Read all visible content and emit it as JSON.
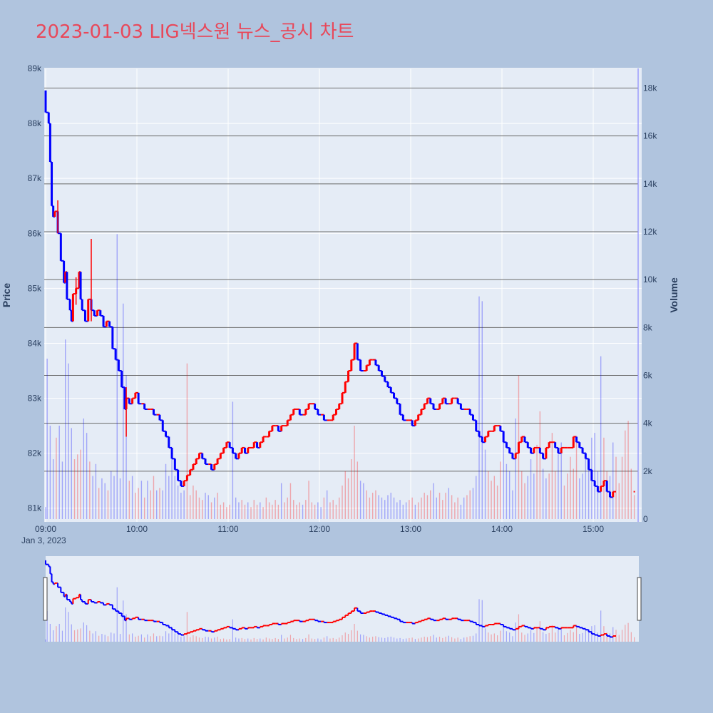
{
  "title": "2023-01-03 LIG넥스원 뉴스_공시 차트",
  "colors": {
    "up": "#ff0000",
    "down": "#0000ff",
    "background": "#b0c4de",
    "plot_bg": "#e5ecf6",
    "title": "#e8485a"
  },
  "chart_data": {
    "type": "candlestick",
    "title": "2023-01-03 LIG넥스원 뉴스_공시 차트",
    "ylabel": "Price",
    "y2label": "Volume",
    "xlabel": "",
    "date_label": "Jan 3, 2023",
    "x_ticks": [
      "09:00",
      "10:00",
      "11:00",
      "12:00",
      "13:00",
      "14:00",
      "15:00"
    ],
    "y_ticks": [
      "81k",
      "82k",
      "83k",
      "84k",
      "85k",
      "86k",
      "87k",
      "88k",
      "89k"
    ],
    "y2_ticks": [
      "0",
      "2k",
      "4k",
      "6k",
      "8k",
      "10k",
      "12k",
      "14k",
      "16k",
      "18k"
    ],
    "ylim": [
      80750,
      89000
    ],
    "y2lim": [
      0,
      18700
    ],
    "x_range_minutes": [
      0,
      390
    ],
    "price_path": [
      [
        0,
        88600
      ],
      [
        2,
        88200
      ],
      [
        3,
        88000
      ],
      [
        4,
        87300
      ],
      [
        5,
        86500
      ],
      [
        6,
        86300
      ],
      [
        8,
        86400
      ],
      [
        10,
        86000
      ],
      [
        12,
        85500
      ],
      [
        13,
        85100
      ],
      [
        14,
        85300
      ],
      [
        16,
        84800
      ],
      [
        17,
        84600
      ],
      [
        18,
        84400
      ],
      [
        20,
        84900
      ],
      [
        22,
        85000
      ],
      [
        23,
        85300
      ],
      [
        24,
        84800
      ],
      [
        26,
        84600
      ],
      [
        28,
        84400
      ],
      [
        30,
        84800
      ],
      [
        32,
        84600
      ],
      [
        34,
        84500
      ],
      [
        36,
        84600
      ],
      [
        38,
        84500
      ],
      [
        40,
        84300
      ],
      [
        42,
        84400
      ],
      [
        44,
        84300
      ],
      [
        46,
        83900
      ],
      [
        48,
        83700
      ],
      [
        50,
        83500
      ],
      [
        52,
        83200
      ],
      [
        53,
        82800
      ],
      [
        55,
        83000
      ],
      [
        57,
        82900
      ],
      [
        59,
        83000
      ],
      [
        61,
        83100
      ],
      [
        63,
        82900
      ],
      [
        65,
        82900
      ],
      [
        67,
        82800
      ],
      [
        69,
        82800
      ],
      [
        71,
        82800
      ],
      [
        73,
        82700
      ],
      [
        75,
        82700
      ],
      [
        77,
        82600
      ],
      [
        79,
        82400
      ],
      [
        81,
        82300
      ],
      [
        83,
        82100
      ],
      [
        85,
        81900
      ],
      [
        87,
        81700
      ],
      [
        89,
        81500
      ],
      [
        91,
        81400
      ],
      [
        93,
        81500
      ],
      [
        95,
        81600
      ],
      [
        97,
        81700
      ],
      [
        99,
        81800
      ],
      [
        101,
        81900
      ],
      [
        103,
        82000
      ],
      [
        105,
        81900
      ],
      [
        107,
        81800
      ],
      [
        109,
        81800
      ],
      [
        111,
        81700
      ],
      [
        113,
        81800
      ],
      [
        115,
        81900
      ],
      [
        117,
        82000
      ],
      [
        119,
        82100
      ],
      [
        121,
        82200
      ],
      [
        123,
        82100
      ],
      [
        125,
        82000
      ],
      [
        127,
        81900
      ],
      [
        129,
        82000
      ],
      [
        131,
        82100
      ],
      [
        133,
        82000
      ],
      [
        135,
        82100
      ],
      [
        137,
        82100
      ],
      [
        139,
        82200
      ],
      [
        141,
        82100
      ],
      [
        143,
        82200
      ],
      [
        145,
        82300
      ],
      [
        147,
        82300
      ],
      [
        149,
        82400
      ],
      [
        151,
        82500
      ],
      [
        153,
        82500
      ],
      [
        155,
        82400
      ],
      [
        157,
        82500
      ],
      [
        159,
        82500
      ],
      [
        161,
        82600
      ],
      [
        163,
        82700
      ],
      [
        165,
        82800
      ],
      [
        167,
        82800
      ],
      [
        169,
        82700
      ],
      [
        171,
        82700
      ],
      [
        173,
        82800
      ],
      [
        175,
        82900
      ],
      [
        177,
        82900
      ],
      [
        179,
        82800
      ],
      [
        181,
        82700
      ],
      [
        183,
        82700
      ],
      [
        185,
        82600
      ],
      [
        187,
        82600
      ],
      [
        189,
        82600
      ],
      [
        191,
        82700
      ],
      [
        193,
        82800
      ],
      [
        195,
        82900
      ],
      [
        197,
        83100
      ],
      [
        199,
        83300
      ],
      [
        201,
        83500
      ],
      [
        203,
        83700
      ],
      [
        205,
        84000
      ],
      [
        207,
        83700
      ],
      [
        209,
        83500
      ],
      [
        211,
        83500
      ],
      [
        213,
        83600
      ],
      [
        215,
        83700
      ],
      [
        217,
        83700
      ],
      [
        219,
        83600
      ],
      [
        221,
        83500
      ],
      [
        223,
        83400
      ],
      [
        225,
        83300
      ],
      [
        227,
        83200
      ],
      [
        229,
        83100
      ],
      [
        231,
        83000
      ],
      [
        233,
        82900
      ],
      [
        235,
        82700
      ],
      [
        237,
        82600
      ],
      [
        239,
        82600
      ],
      [
        241,
        82600
      ],
      [
        243,
        82500
      ],
      [
        245,
        82600
      ],
      [
        247,
        82700
      ],
      [
        249,
        82800
      ],
      [
        251,
        82900
      ],
      [
        253,
        83000
      ],
      [
        255,
        82900
      ],
      [
        257,
        82800
      ],
      [
        259,
        82800
      ],
      [
        261,
        82900
      ],
      [
        263,
        83000
      ],
      [
        265,
        82900
      ],
      [
        267,
        82900
      ],
      [
        269,
        83000
      ],
      [
        271,
        83000
      ],
      [
        273,
        82900
      ],
      [
        275,
        82800
      ],
      [
        277,
        82800
      ],
      [
        279,
        82800
      ],
      [
        281,
        82700
      ],
      [
        283,
        82600
      ],
      [
        285,
        82400
      ],
      [
        287,
        82300
      ],
      [
        289,
        82200
      ],
      [
        291,
        82300
      ],
      [
        293,
        82400
      ],
      [
        295,
        82400
      ],
      [
        297,
        82500
      ],
      [
        299,
        82500
      ],
      [
        301,
        82400
      ],
      [
        303,
        82200
      ],
      [
        305,
        82100
      ],
      [
        307,
        82000
      ],
      [
        309,
        81900
      ],
      [
        311,
        82000
      ],
      [
        313,
        82200
      ],
      [
        315,
        82300
      ],
      [
        317,
        82200
      ],
      [
        319,
        82100
      ],
      [
        321,
        82000
      ],
      [
        323,
        82100
      ],
      [
        325,
        82100
      ],
      [
        327,
        82000
      ],
      [
        329,
        81900
      ],
      [
        331,
        82100
      ],
      [
        333,
        82200
      ],
      [
        335,
        82200
      ],
      [
        337,
        82100
      ],
      [
        339,
        82000
      ],
      [
        341,
        82100
      ],
      [
        343,
        82100
      ],
      [
        345,
        82100
      ],
      [
        347,
        82100
      ],
      [
        349,
        82300
      ],
      [
        351,
        82200
      ],
      [
        353,
        82100
      ],
      [
        355,
        82000
      ],
      [
        357,
        81900
      ],
      [
        359,
        81700
      ],
      [
        361,
        81500
      ],
      [
        363,
        81400
      ],
      [
        365,
        81300
      ],
      [
        367,
        81400
      ],
      [
        369,
        81500
      ],
      [
        371,
        81300
      ],
      [
        373,
        81200
      ],
      [
        375,
        81300
      ]
    ],
    "price_marker": [
      387,
      81300
    ],
    "volume_bars_sampled": [
      [
        0,
        500
      ],
      [
        1,
        6700
      ],
      [
        3,
        3900
      ],
      [
        5,
        2500
      ],
      [
        7,
        3400
      ],
      [
        9,
        3900
      ],
      [
        11,
        2400
      ],
      [
        13,
        7500
      ],
      [
        15,
        6500
      ],
      [
        17,
        3800
      ],
      [
        19,
        2500
      ],
      [
        21,
        2700
      ],
      [
        23,
        2900
      ],
      [
        25,
        4200
      ],
      [
        27,
        3600
      ],
      [
        29,
        2400
      ],
      [
        31,
        1800
      ],
      [
        33,
        2300
      ],
      [
        35,
        1300
      ],
      [
        37,
        1700
      ],
      [
        39,
        1500
      ],
      [
        41,
        1200
      ],
      [
        43,
        2000
      ],
      [
        45,
        1800
      ],
      [
        47,
        11900
      ],
      [
        49,
        1700
      ],
      [
        51,
        9000
      ],
      [
        53,
        6000
      ],
      [
        55,
        1600
      ],
      [
        57,
        1800
      ],
      [
        59,
        1100
      ],
      [
        61,
        1300
      ],
      [
        63,
        1600
      ],
      [
        65,
        900
      ],
      [
        67,
        1600
      ],
      [
        69,
        1200
      ],
      [
        71,
        1800
      ],
      [
        73,
        1200
      ],
      [
        75,
        1300
      ],
      [
        77,
        1200
      ],
      [
        79,
        2300
      ],
      [
        81,
        1800
      ],
      [
        83,
        2600
      ],
      [
        85,
        1800
      ],
      [
        87,
        1400
      ],
      [
        89,
        1100
      ],
      [
        91,
        1200
      ],
      [
        93,
        6500
      ],
      [
        95,
        1000
      ],
      [
        97,
        1400
      ],
      [
        99,
        1200
      ],
      [
        101,
        900
      ],
      [
        103,
        800
      ],
      [
        105,
        1100
      ],
      [
        107,
        1000
      ],
      [
        109,
        700
      ],
      [
        111,
        900
      ],
      [
        113,
        1100
      ],
      [
        115,
        600
      ],
      [
        117,
        700
      ],
      [
        119,
        500
      ],
      [
        121,
        600
      ],
      [
        123,
        4900
      ],
      [
        125,
        900
      ],
      [
        127,
        700
      ],
      [
        129,
        800
      ],
      [
        131,
        600
      ],
      [
        133,
        700
      ],
      [
        135,
        500
      ],
      [
        137,
        800
      ],
      [
        139,
        600
      ],
      [
        141,
        700
      ],
      [
        143,
        500
      ],
      [
        145,
        900
      ],
      [
        147,
        700
      ],
      [
        149,
        600
      ],
      [
        151,
        800
      ],
      [
        153,
        600
      ],
      [
        155,
        1500
      ],
      [
        157,
        700
      ],
      [
        159,
        900
      ],
      [
        161,
        1500
      ],
      [
        163,
        800
      ],
      [
        165,
        600
      ],
      [
        167,
        700
      ],
      [
        169,
        600
      ],
      [
        171,
        800
      ],
      [
        173,
        1600
      ],
      [
        175,
        700
      ],
      [
        177,
        600
      ],
      [
        179,
        700
      ],
      [
        181,
        500
      ],
      [
        183,
        900
      ],
      [
        185,
        1200
      ],
      [
        187,
        700
      ],
      [
        189,
        800
      ],
      [
        191,
        600
      ],
      [
        193,
        900
      ],
      [
        195,
        1400
      ],
      [
        197,
        2000
      ],
      [
        199,
        1700
      ],
      [
        201,
        2500
      ],
      [
        203,
        3900
      ],
      [
        205,
        2400
      ],
      [
        207,
        1600
      ],
      [
        209,
        1500
      ],
      [
        211,
        1200
      ],
      [
        213,
        900
      ],
      [
        215,
        1100
      ],
      [
        217,
        1200
      ],
      [
        219,
        1000
      ],
      [
        221,
        900
      ],
      [
        223,
        800
      ],
      [
        225,
        1000
      ],
      [
        227,
        1100
      ],
      [
        229,
        900
      ],
      [
        231,
        700
      ],
      [
        233,
        800
      ],
      [
        235,
        600
      ],
      [
        237,
        700
      ],
      [
        239,
        800
      ],
      [
        241,
        900
      ],
      [
        243,
        600
      ],
      [
        245,
        700
      ],
      [
        247,
        900
      ],
      [
        249,
        1100
      ],
      [
        251,
        1000
      ],
      [
        253,
        1200
      ],
      [
        255,
        1500
      ],
      [
        257,
        900
      ],
      [
        259,
        1100
      ],
      [
        261,
        800
      ],
      [
        263,
        1100
      ],
      [
        265,
        1300
      ],
      [
        267,
        1000
      ],
      [
        269,
        700
      ],
      [
        271,
        900
      ],
      [
        273,
        600
      ],
      [
        275,
        900
      ],
      [
        277,
        1000
      ],
      [
        279,
        1200
      ],
      [
        281,
        1300
      ],
      [
        283,
        1800
      ],
      [
        285,
        9300
      ],
      [
        287,
        9100
      ],
      [
        289,
        2900
      ],
      [
        291,
        2000
      ],
      [
        293,
        1600
      ],
      [
        295,
        1800
      ],
      [
        297,
        1400
      ],
      [
        299,
        2400
      ],
      [
        301,
        3500
      ],
      [
        303,
        2300
      ],
      [
        305,
        2000
      ],
      [
        307,
        1200
      ],
      [
        309,
        4200
      ],
      [
        311,
        6000
      ],
      [
        313,
        2000
      ],
      [
        315,
        1500
      ],
      [
        317,
        1800
      ],
      [
        319,
        2500
      ],
      [
        321,
        1900
      ],
      [
        323,
        3100
      ],
      [
        325,
        4500
      ],
      [
        327,
        2100
      ],
      [
        329,
        1700
      ],
      [
        331,
        1900
      ],
      [
        333,
        3600
      ],
      [
        335,
        2000
      ],
      [
        337,
        2700
      ],
      [
        339,
        3200
      ],
      [
        341,
        1400
      ],
      [
        343,
        1900
      ],
      [
        345,
        2600
      ],
      [
        347,
        2100
      ],
      [
        349,
        3400
      ],
      [
        351,
        1700
      ],
      [
        353,
        1900
      ],
      [
        355,
        2800
      ],
      [
        357,
        2400
      ],
      [
        359,
        3400
      ],
      [
        361,
        3600
      ],
      [
        363,
        2000
      ],
      [
        365,
        6800
      ],
      [
        367,
        3400
      ],
      [
        369,
        2000
      ],
      [
        371,
        1800
      ],
      [
        373,
        3200
      ],
      [
        375,
        2600
      ],
      [
        377,
        1500
      ],
      [
        379,
        2600
      ],
      [
        381,
        3700
      ],
      [
        383,
        4100
      ],
      [
        385,
        2100
      ],
      [
        387,
        1000
      ]
    ]
  }
}
